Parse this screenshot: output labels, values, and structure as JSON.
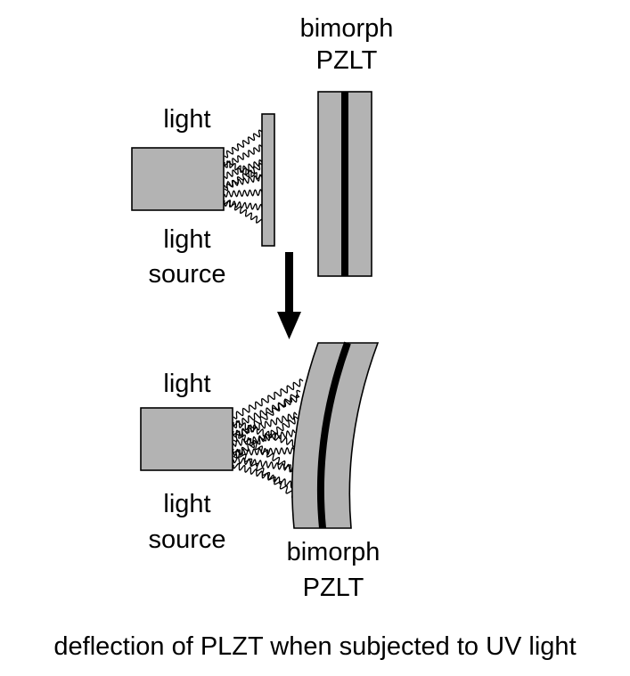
{
  "top_panel": {
    "bimorph_label_line1": "bimorph",
    "bimorph_label_line2": "PZLT",
    "light_label": "light",
    "source_label_line1": "light",
    "source_label_line2": "source"
  },
  "bottom_panel": {
    "light_label": "light",
    "source_label_line1": "light",
    "source_label_line2": "source",
    "bimorph_label_line1": "bimorph",
    "bimorph_label_line2": "PZLT"
  },
  "caption": "deflection of PLZT when subjected to UV light",
  "colors": {
    "fill": "#b3b3b3",
    "stroke": "#000000",
    "background": "#ffffff"
  }
}
